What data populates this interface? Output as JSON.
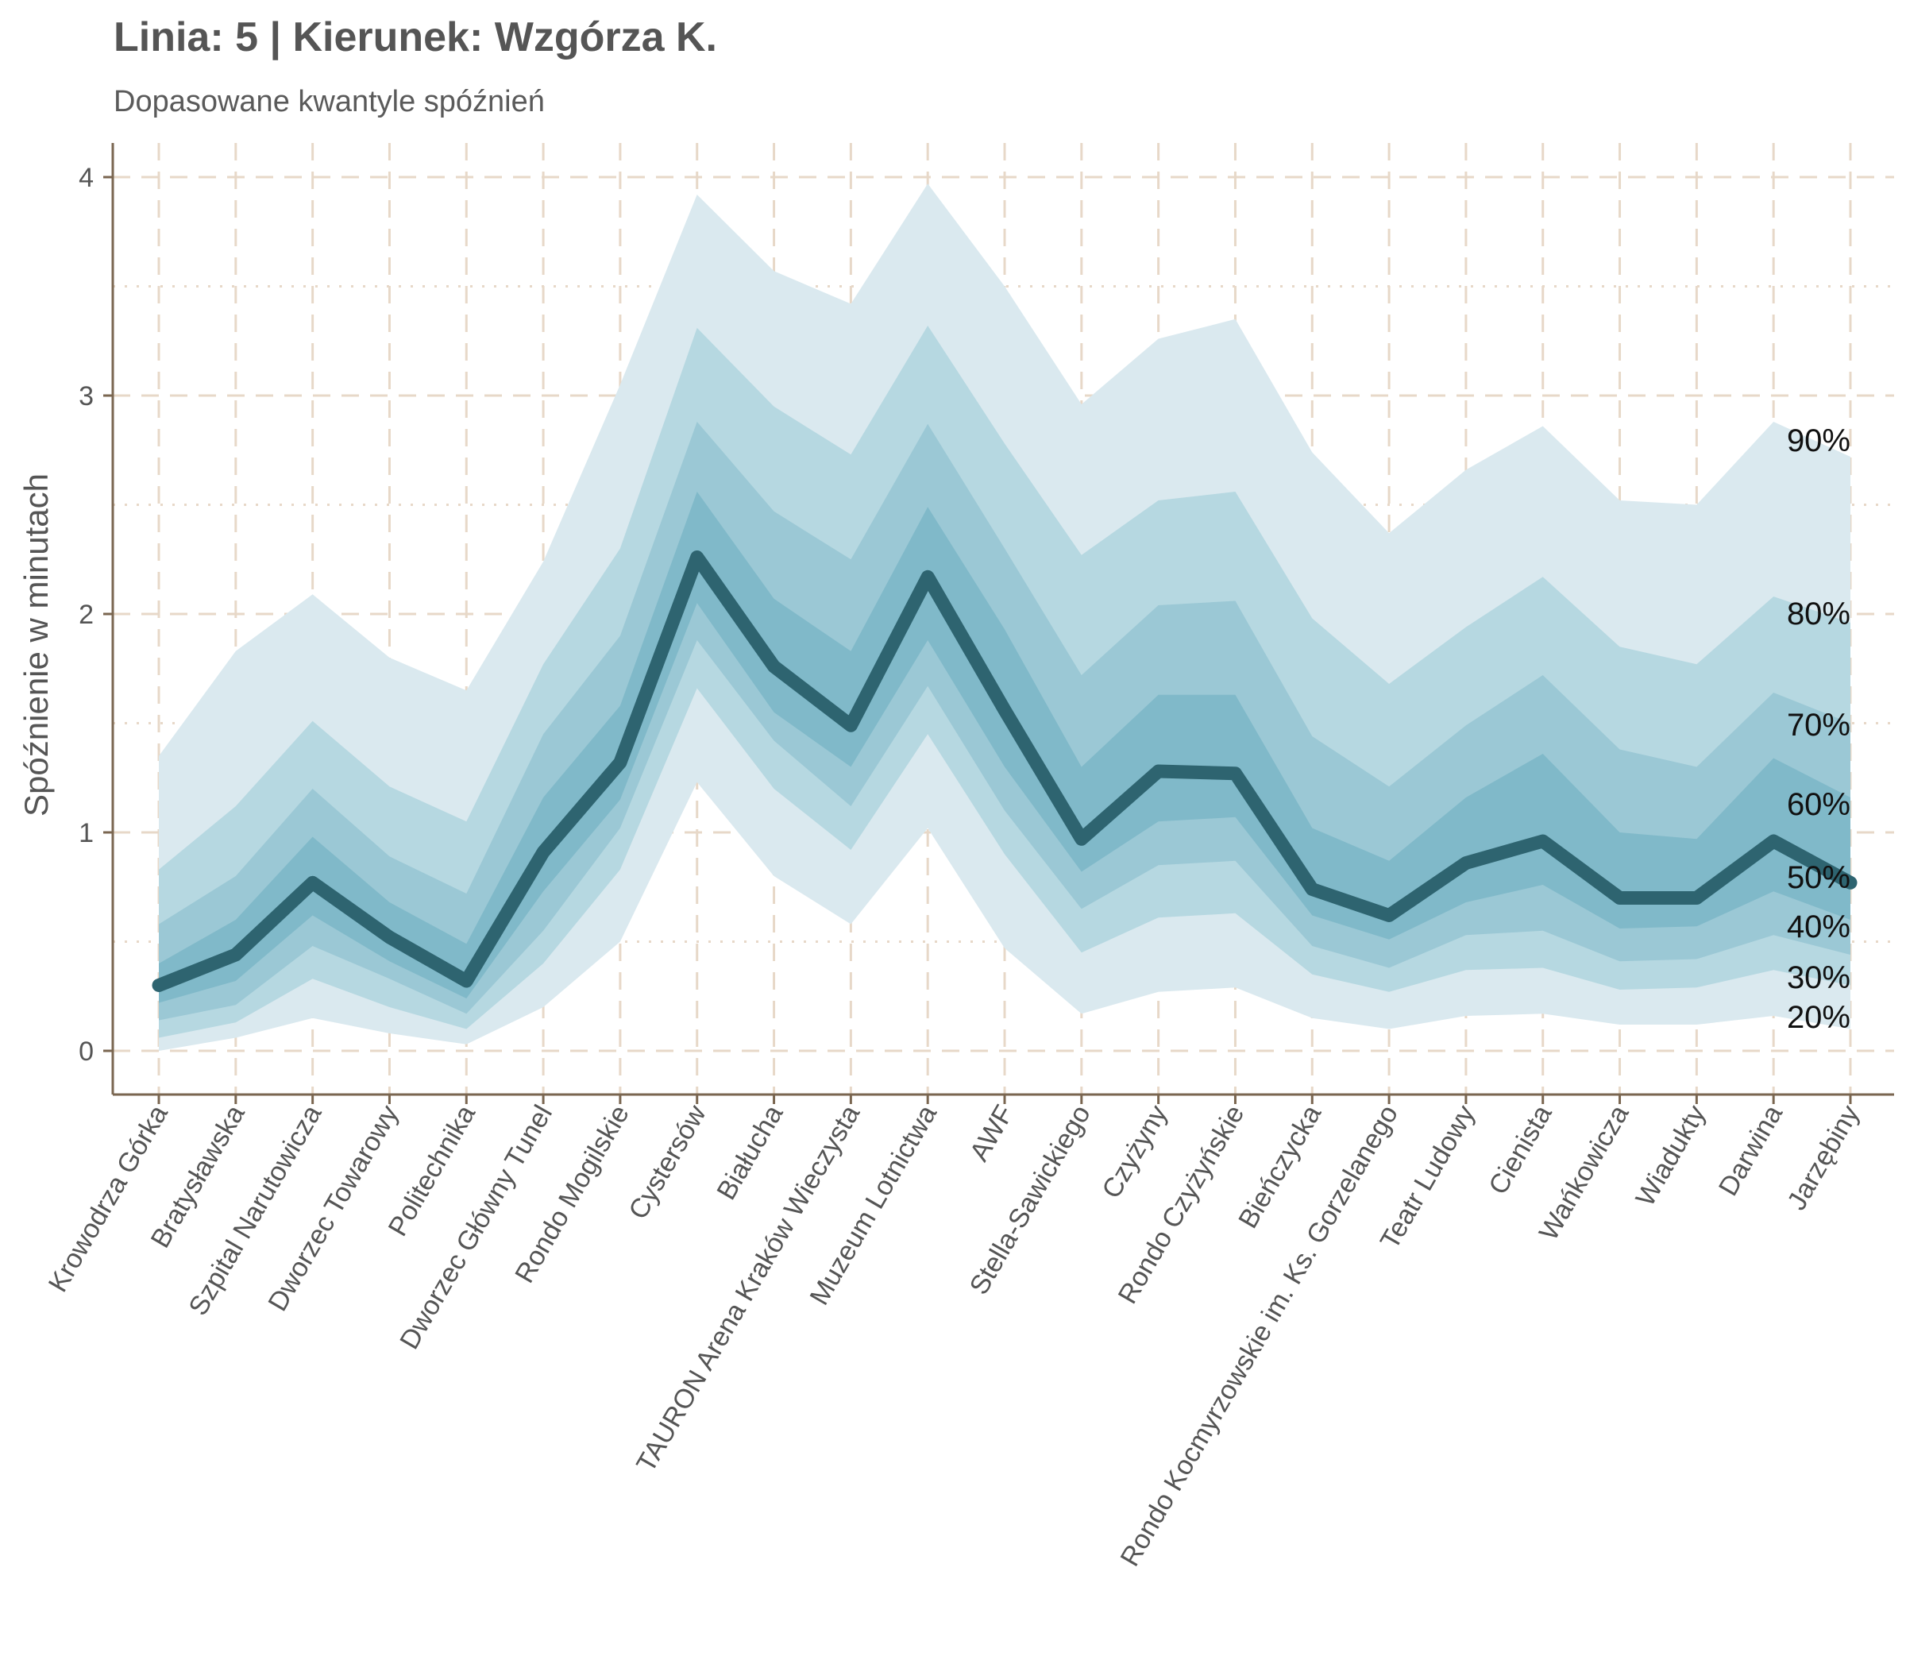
{
  "chart_data": {
    "type": "area",
    "title": "Linia: 5 | Kierunek: Wzgórza K.",
    "subtitle": "Dopasowane kwantyle spóźnień",
    "xlabel": "",
    "ylabel": "Spóźnienie w minutach",
    "ylim": [
      -0.2,
      4.15
    ],
    "yticks": [
      "0",
      "1",
      "2",
      "3",
      "4"
    ],
    "grid": true,
    "categories": [
      "Krowodrza Górka",
      "Bratysławska",
      "Szpital Narutowicza",
      "Dworzec Towarowy",
      "Politechnika",
      "Dworzec Główny Tunel",
      "Rondo Mogilskie",
      "Cystersów",
      "Białucha",
      "TAURON Arena Kraków Wieczysta",
      "Muzeum Lotnictwa",
      "AWF",
      "Stella-Sawickiego",
      "Czyżyny",
      "Rondo Czyżyńskie",
      "Bieńczycka",
      "Rondo Kocmyrzowskie im. Ks. Gorzelanego",
      "Teatr Ludowy",
      "Cienista",
      "Wańkowicza",
      "Wiadukty",
      "Darwina",
      "Jarzębiny"
    ],
    "quantile_labels": [
      "90%",
      "80%",
      "70%",
      "60%",
      "50%",
      "40%",
      "30%",
      "20%"
    ],
    "bands": [
      {
        "lower_q": "10%",
        "upper_q": "90%",
        "color": "#dae9ef",
        "lower": [
          0.0,
          0.06,
          0.15,
          0.08,
          0.03,
          0.2,
          0.5,
          1.23,
          0.8,
          0.58,
          1.02,
          0.47,
          0.17,
          0.27,
          0.29,
          0.15,
          0.1,
          0.16,
          0.17,
          0.12,
          0.12,
          0.16,
          0.1
        ],
        "upper": [
          1.35,
          1.83,
          2.09,
          1.8,
          1.65,
          2.24,
          3.05,
          3.92,
          3.57,
          3.42,
          3.97,
          3.5,
          2.96,
          3.26,
          3.35,
          2.74,
          2.37,
          2.66,
          2.86,
          2.52,
          2.5,
          2.88,
          2.72
        ]
      },
      {
        "lower_q": "20%",
        "upper_q": "80%",
        "color": "#b6d8e1",
        "lower": [
          0.06,
          0.13,
          0.33,
          0.2,
          0.1,
          0.4,
          0.83,
          1.66,
          1.2,
          0.92,
          1.45,
          0.9,
          0.45,
          0.61,
          0.63,
          0.35,
          0.27,
          0.37,
          0.38,
          0.28,
          0.29,
          0.37,
          0.3
        ],
        "upper": [
          0.83,
          1.12,
          1.51,
          1.21,
          1.05,
          1.77,
          2.3,
          3.31,
          2.95,
          2.73,
          3.32,
          2.78,
          2.27,
          2.52,
          2.56,
          1.98,
          1.68,
          1.94,
          2.17,
          1.85,
          1.77,
          2.08,
          1.96
        ]
      },
      {
        "lower_q": "30%",
        "upper_q": "70%",
        "color": "#9bc8d5",
        "lower": [
          0.14,
          0.21,
          0.48,
          0.33,
          0.17,
          0.55,
          1.02,
          1.88,
          1.42,
          1.12,
          1.67,
          1.1,
          0.65,
          0.85,
          0.87,
          0.48,
          0.38,
          0.53,
          0.55,
          0.41,
          0.42,
          0.53,
          0.44
        ],
        "upper": [
          0.58,
          0.8,
          1.2,
          0.89,
          0.72,
          1.45,
          1.9,
          2.88,
          2.47,
          2.25,
          2.87,
          2.3,
          1.72,
          2.04,
          2.06,
          1.44,
          1.21,
          1.49,
          1.72,
          1.38,
          1.3,
          1.64,
          1.5
        ]
      },
      {
        "lower_q": "40%",
        "upper_q": "60%",
        "color": "#80b9c9",
        "lower": [
          0.22,
          0.32,
          0.62,
          0.41,
          0.24,
          0.73,
          1.15,
          2.05,
          1.55,
          1.3,
          1.88,
          1.3,
          0.82,
          1.05,
          1.07,
          0.62,
          0.51,
          0.68,
          0.76,
          0.56,
          0.57,
          0.73,
          0.6
        ],
        "upper": [
          0.4,
          0.6,
          0.98,
          0.68,
          0.49,
          1.16,
          1.58,
          2.56,
          2.07,
          1.83,
          2.49,
          1.93,
          1.3,
          1.63,
          1.63,
          1.02,
          0.87,
          1.16,
          1.36,
          1.0,
          0.97,
          1.34,
          1.16
        ]
      }
    ],
    "series": [
      {
        "name": "50%",
        "color": "#2e6470",
        "values": [
          0.3,
          0.44,
          0.77,
          0.52,
          0.32,
          0.91,
          1.32,
          2.26,
          1.76,
          1.49,
          2.17,
          1.56,
          0.97,
          1.28,
          1.27,
          0.74,
          0.62,
          0.86,
          0.96,
          0.7,
          0.7,
          0.96,
          0.77
        ]
      }
    ]
  }
}
